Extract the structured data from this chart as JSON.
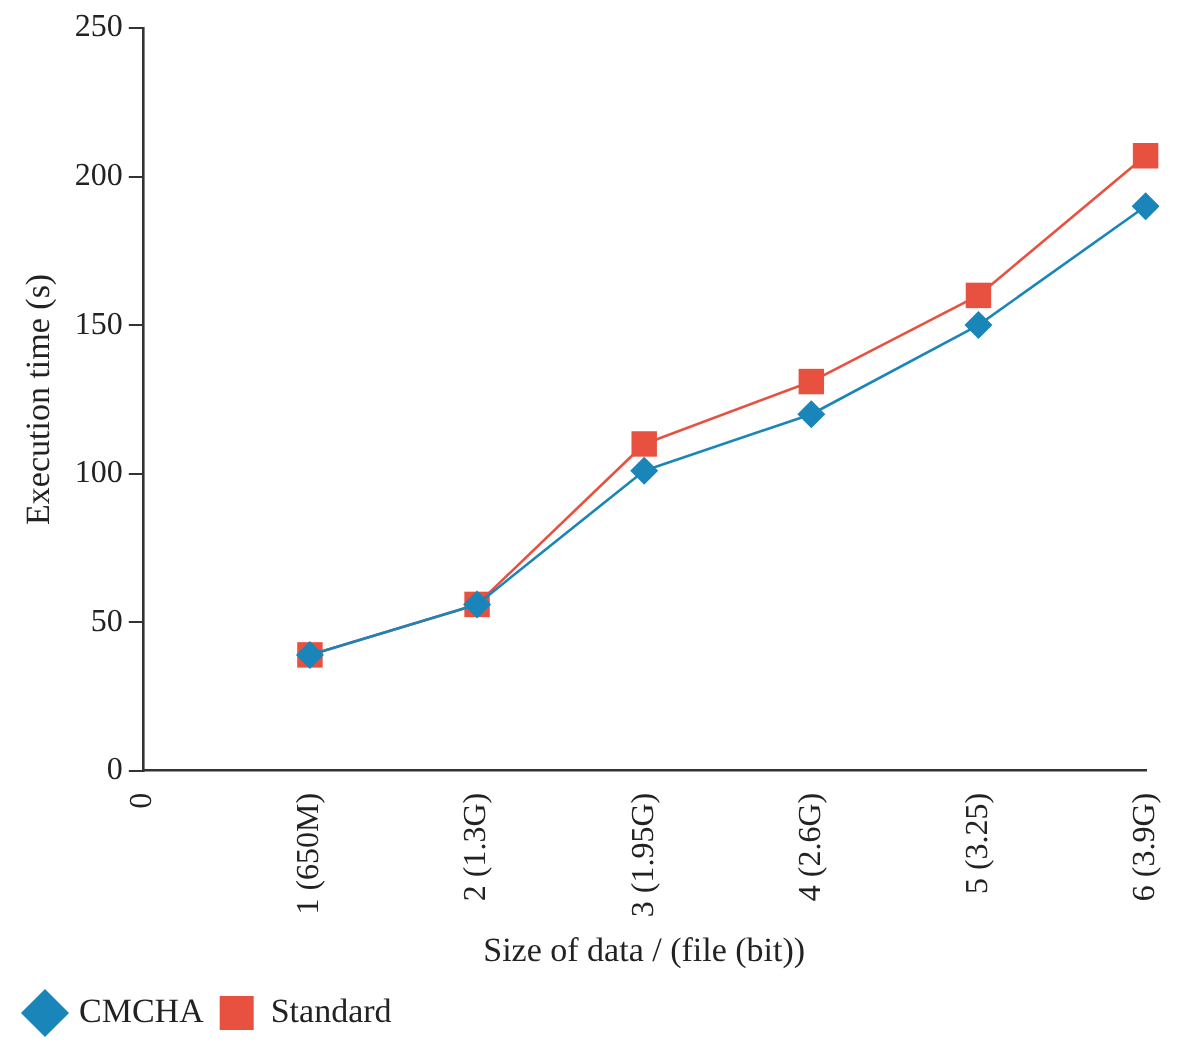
{
  "chart_data": {
    "type": "line",
    "xlabel": "Size of data / (file (bit))",
    "ylabel": "Execution time (s)",
    "categories": [
      "0",
      "1 (650M)",
      "2 (1.3G)",
      "3 (1.95G)",
      "4 (2.6G)",
      "5 (3.25)",
      "6 (3.9G)"
    ],
    "ylim": [
      0,
      250
    ],
    "yticks": [
      0,
      50,
      100,
      150,
      200,
      250
    ],
    "grid": false,
    "legend": "bottom left",
    "series": [
      {
        "name": "Standard",
        "color": "#e8503f",
        "marker": "square",
        "values": [
          null,
          39,
          56,
          110,
          131,
          160,
          207
        ]
      },
      {
        "name": "CMCHA",
        "color": "#1a85b8",
        "marker": "diamond",
        "values": [
          null,
          39,
          56,
          101,
          120,
          150,
          190
        ]
      }
    ]
  }
}
